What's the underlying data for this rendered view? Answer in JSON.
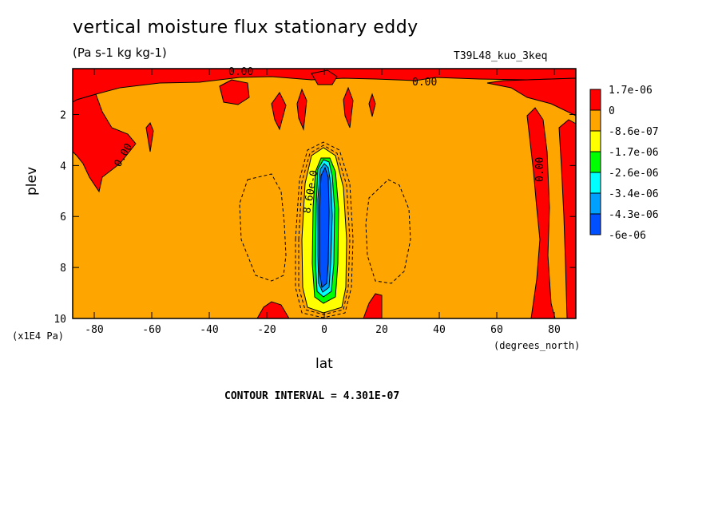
{
  "chart_data": {
    "type": "heatmap",
    "title": "vertical moisture flux stationary eddy",
    "units": "(Pa s-1 kg kg-1)",
    "run_label": "T39L48_kuo_3keq",
    "xlabel": "lat",
    "xunit": "(degrees_north)",
    "ylabel": "plev",
    "yunit": "(x1E4 Pa)",
    "x_ticks": [
      -80,
      -60,
      -40,
      -20,
      0,
      20,
      40,
      60,
      80
    ],
    "y_ticks": [
      2,
      4,
      6,
      8,
      10
    ],
    "xlim": [
      -87.5,
      87.5
    ],
    "ylim": [
      0.2,
      10
    ],
    "y_inverted": true,
    "contour_interval": "CONTOUR INTERVAL = 4.301E-07",
    "legend": [
      {
        "label": "1.7e-06",
        "color": "#ff0000"
      },
      {
        "label": "0",
        "color": "#ffa500"
      },
      {
        "label": "-8.6e-07",
        "color": "#ffff00"
      },
      {
        "label": "-1.7e-06",
        "color": "#00ff00"
      },
      {
        "label": "-2.6e-06",
        "color": "#00ffff"
      },
      {
        "label": "-3.4e-06",
        "color": "#00a0ff"
      },
      {
        "label": "-4.3e-06",
        "color": "#0050ff"
      },
      {
        "label": "-6e-06",
        "color": ""
      }
    ],
    "contour_labels": [
      "0.00",
      "0.00",
      "0.00",
      "0.00",
      "8.60e-0"
    ],
    "background_color": "#ffa500"
  }
}
